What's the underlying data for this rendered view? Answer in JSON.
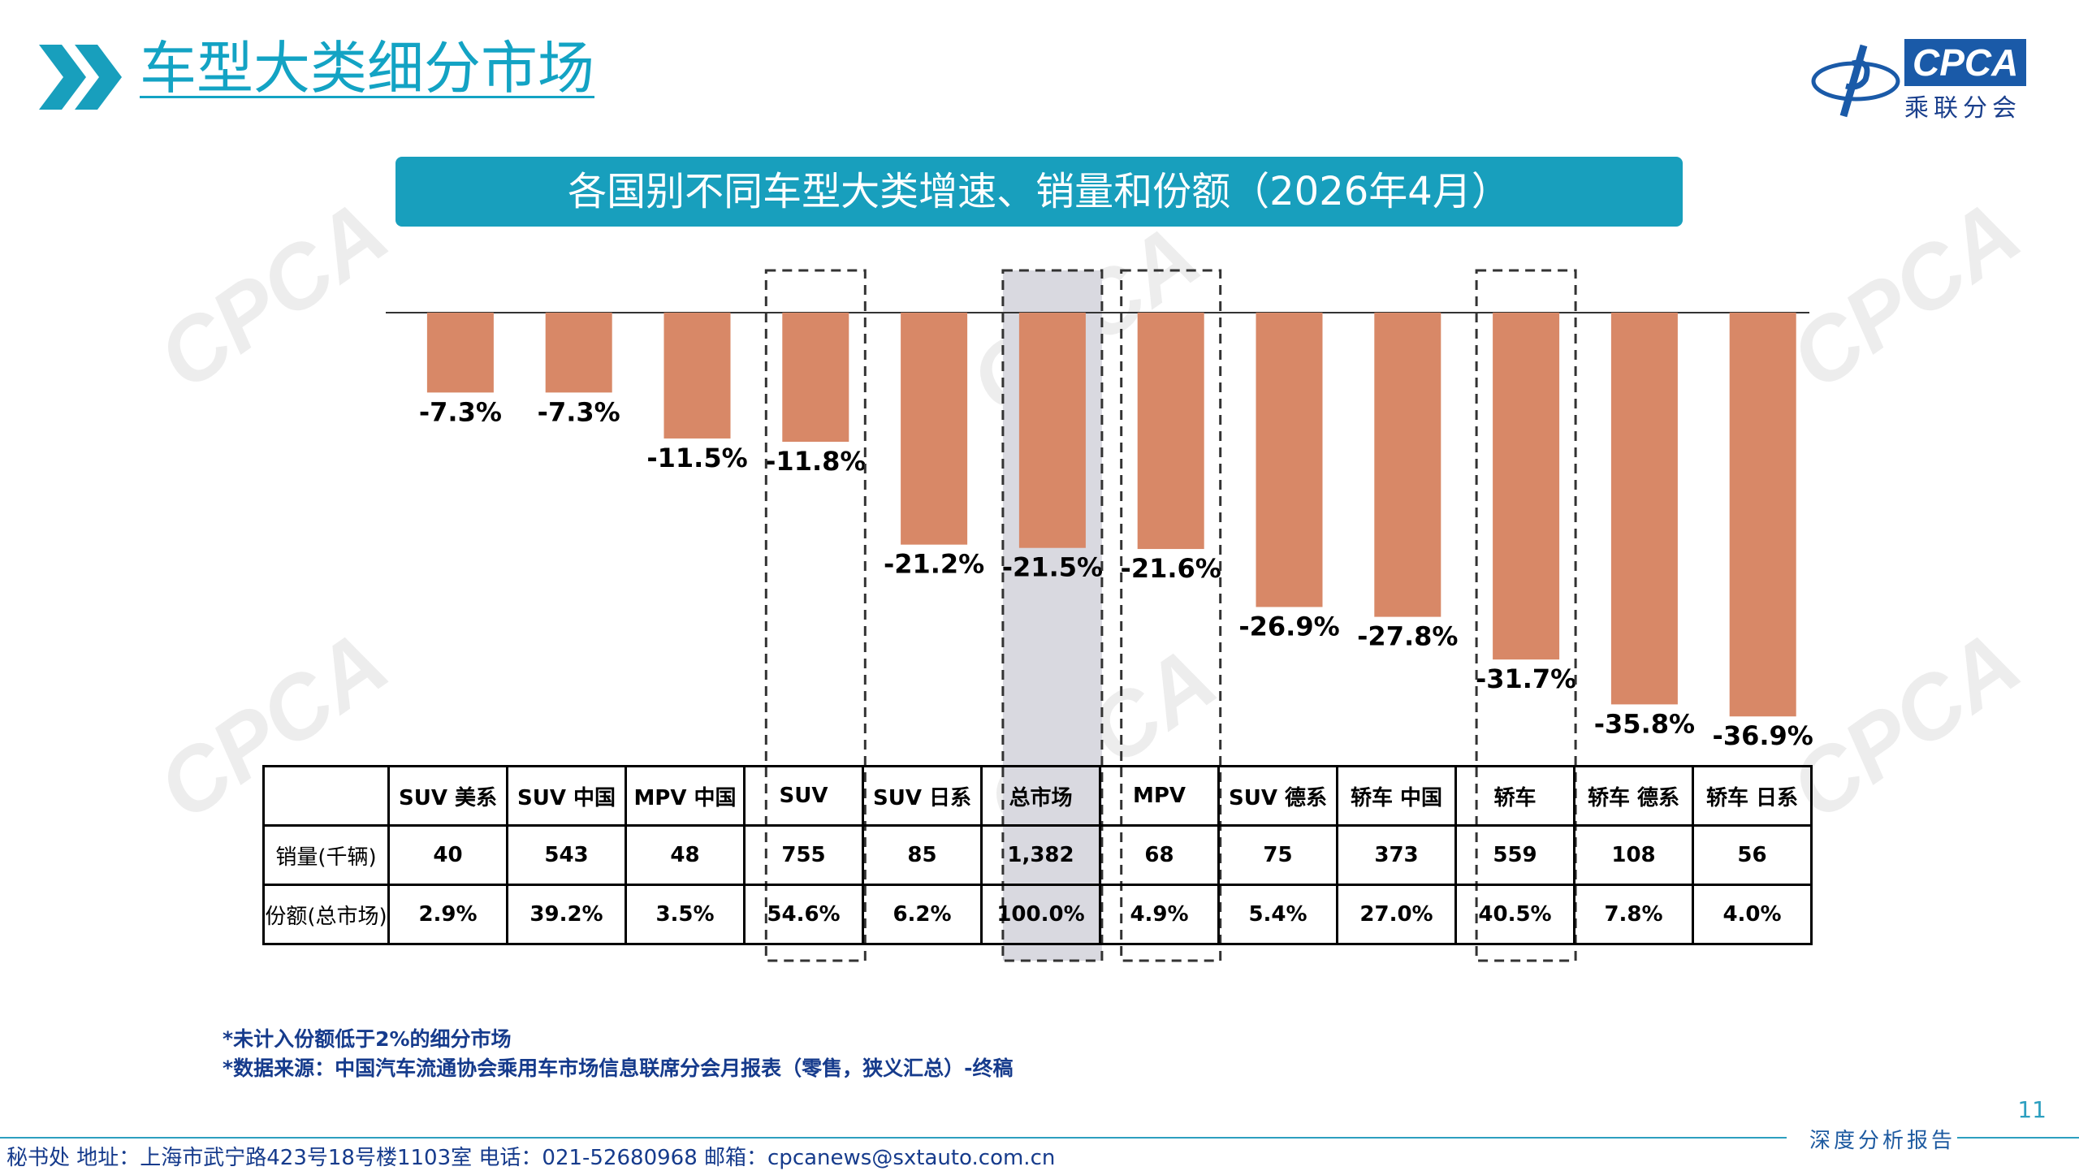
{
  "header": {
    "page_title": "车型大类细分市场",
    "chart_title": "各国别不同车型大类增速、销量和份额（2026年4月）",
    "logo_text": "CPCA",
    "logo_subtext": "乘联分会"
  },
  "colors": {
    "accent": "#189fbd",
    "bar": "#d88867",
    "highlight_bg": "#d9d9e0",
    "notes_text": "#163b8c"
  },
  "chart_data": {
    "type": "bar",
    "categories": [
      "SUV 美系",
      "SUV 中国",
      "MPV 中国",
      "SUV",
      "SUV 日系",
      "总市场",
      "MPV",
      "SUV 德系",
      "轿车 中国",
      "轿车",
      "轿车 德系",
      "轿车 日系"
    ],
    "values": [
      -7.3,
      -7.3,
      -11.5,
      -11.8,
      -21.2,
      -21.5,
      -21.6,
      -26.9,
      -27.8,
      -31.7,
      -35.8,
      -36.9
    ],
    "value_labels": [
      "-7.3%",
      "-7.3%",
      "-11.5%",
      "-11.8%",
      "-21.2%",
      "-21.5%",
      "-21.6%",
      "-26.9%",
      "-27.8%",
      "-31.7%",
      "-35.8%",
      "-36.9%"
    ],
    "unit": "%",
    "ylim": [
      -40,
      0
    ],
    "dashed_outline": [
      3,
      6,
      9
    ],
    "highlighted": [
      5
    ],
    "gridlines": false
  },
  "table": {
    "headers": [
      "SUV 美系",
      "SUV 中国",
      "MPV 中国",
      "SUV",
      "SUV 日系",
      "总市场",
      "MPV",
      "SUV 德系",
      "轿车 中国",
      "轿车",
      "轿车 德系",
      "轿车 日系"
    ],
    "rows": [
      {
        "label": "销量(千辆)",
        "cells": [
          "40",
          "543",
          "48",
          "755",
          "85",
          "1,382",
          "68",
          "75",
          "373",
          "559",
          "108",
          "56"
        ]
      },
      {
        "label": "份额(总市场)",
        "cells": [
          "2.9%",
          "39.2%",
          "3.5%",
          "54.6%",
          "6.2%",
          "100.0%",
          "4.9%",
          "5.4%",
          "27.0%",
          "40.5%",
          "7.8%",
          "4.0%"
        ]
      }
    ]
  },
  "notes": {
    "line1": "*未计入份额低于2%的细分市场",
    "line2": "*数据来源：中国汽车流通协会乘用车市场信息联席分会月报表（零售，狭义汇总）-终稿"
  },
  "footer": {
    "page_number": "11",
    "label": "深度分析报告",
    "contact": "秘书处   地址：上海市武宁路423号18号楼1103室   电话：021-52680968   邮箱：cpcanews@sxtauto.com.cn"
  }
}
